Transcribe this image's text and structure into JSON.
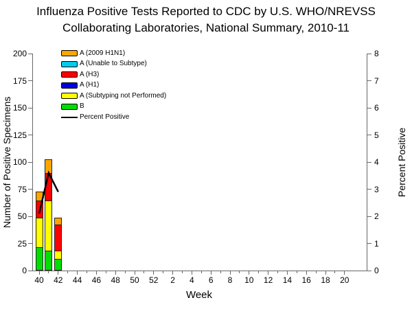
{
  "title": {
    "line1": "Influenza Positive Tests Reported to CDC by U.S. WHO/NREVSS",
    "line2": "Collaborating Laboratories, National Summary, 2010-11"
  },
  "chart_data": {
    "type": "bar",
    "stacked": true,
    "title": "Influenza Positive Tests Reported to CDC by U.S. WHO/NREVSS Collaborating Laboratories, National Summary, 2010-11",
    "xlabel": "Week",
    "ylabel_left": "Number of Positive Specimens",
    "ylabel_right": "Percent Positive",
    "ylim_left": [
      0,
      200
    ],
    "ytick_step_left": 25,
    "ylim_right": [
      0,
      8
    ],
    "ytick_step_right": 1,
    "grid": false,
    "legend_position": "top-left-inside",
    "weeks": [
      40,
      41,
      42,
      43,
      44,
      45,
      46,
      47,
      48,
      49,
      50,
      51,
      52,
      1,
      2,
      3,
      4,
      5,
      6,
      7,
      8,
      9,
      10,
      11,
      12,
      13,
      14,
      15,
      16,
      17,
      18,
      19,
      20
    ],
    "xtick_label_every": 2,
    "bar_weeks": [
      40,
      41,
      42
    ],
    "series": [
      {
        "name": "A (2009 H1N1)",
        "color": "#FFA500",
        "values": [
          8,
          13,
          6
        ]
      },
      {
        "name": "A (Unable to Subtype)",
        "color": "#00CCEE",
        "values": [
          0,
          0,
          0
        ]
      },
      {
        "name": "A (H3)",
        "color": "#FF0000",
        "values": [
          16,
          25,
          24
        ]
      },
      {
        "name": "A (H1)",
        "color": "#0000DD",
        "values": [
          0,
          0,
          0
        ]
      },
      {
        "name": "A (Subtyping not Performed)",
        "color": "#FFFF00",
        "values": [
          27,
          46,
          8
        ]
      },
      {
        "name": "B",
        "color": "#00DD00",
        "values": [
          21,
          18,
          10
        ]
      }
    ],
    "line_series": {
      "name": "Percent Positive",
      "color": "#000000",
      "axis": "right",
      "weeks": [
        40,
        41,
        42
      ],
      "values": [
        2.1,
        3.6,
        2.9
      ]
    }
  }
}
